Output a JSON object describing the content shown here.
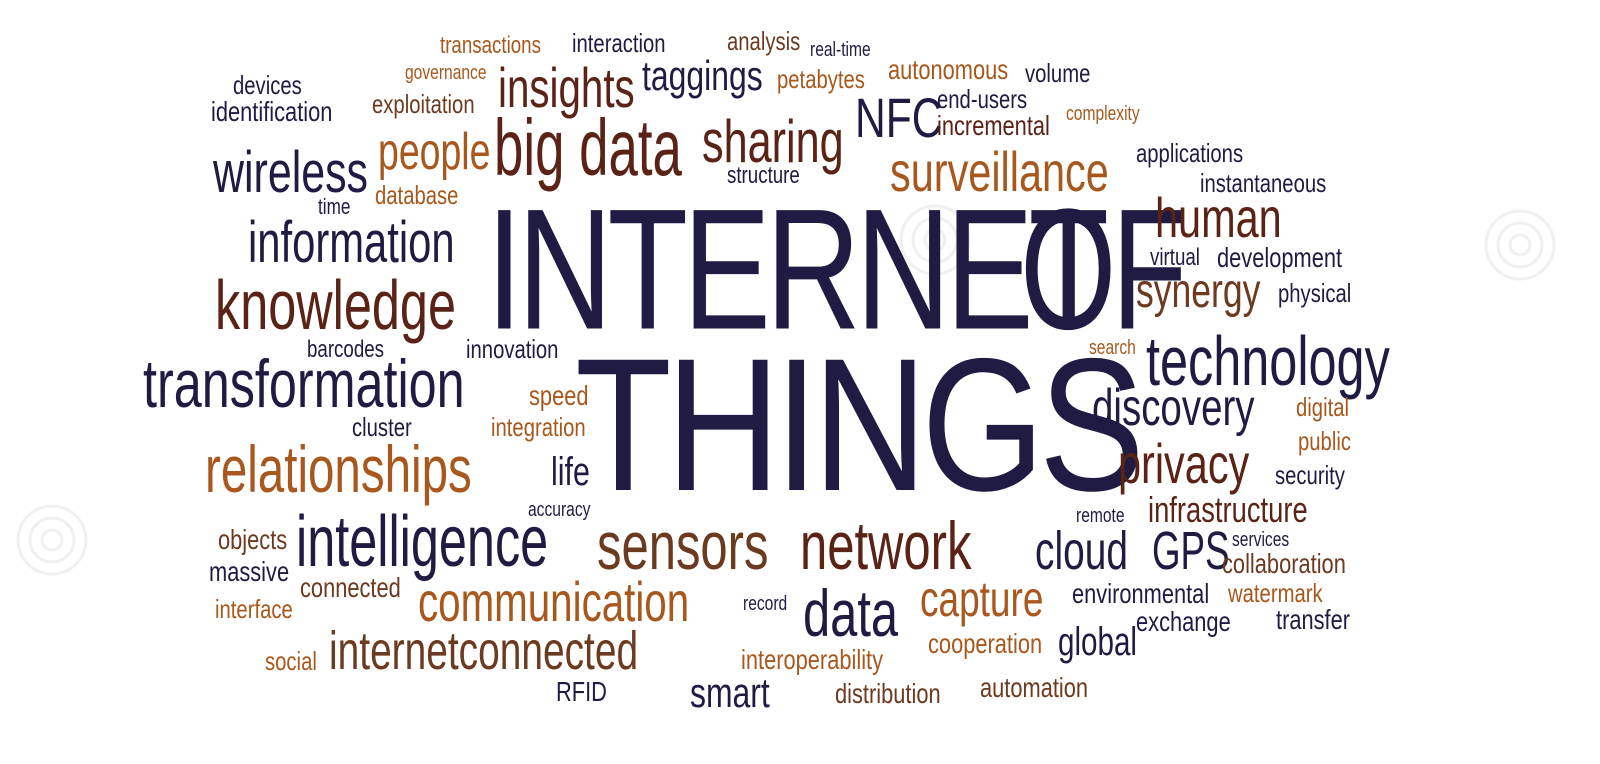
{
  "palette": {
    "navy": "#1f1b42",
    "maroon": "#5a2316",
    "brown": "#6b3a1f",
    "orange": "#a8581c",
    "dark": "#2b1a2e"
  },
  "words": {
    "internet": "INTERNET",
    "of": "OF",
    "things": "THINGS",
    "transactions": "transactions",
    "interaction": "interaction",
    "analysis": "analysis",
    "real_time": "real-time",
    "governance": "governance",
    "insights": "insights",
    "taggings": "taggings",
    "petabytes": "petabytes",
    "autonomous": "autonomous",
    "volume": "volume",
    "devices": "devices",
    "identification": "identification",
    "exploitation": "exploitation",
    "nfc": "NFC",
    "end_users": "end-users",
    "incremental": "incremental",
    "complexity": "complexity",
    "people": "people",
    "big_data": "big data",
    "sharing": "sharing",
    "applications": "applications",
    "wireless": "wireless",
    "surveillance": "surveillance",
    "structure": "structure",
    "instantaneous": "instantaneous",
    "database": "database",
    "time": "time",
    "human": "human",
    "information": "information",
    "virtual": "virtual",
    "development": "development",
    "knowledge": "knowledge",
    "synergy": "synergy",
    "physical": "physical",
    "barcodes": "barcodes",
    "innovation": "innovation",
    "search": "search",
    "technology": "technology",
    "transformation": "transformation",
    "speed": "speed",
    "discovery": "discovery",
    "digital": "digital",
    "cluster": "cluster",
    "integration": "integration",
    "public": "public",
    "relationships": "relationships",
    "life": "life",
    "privacy": "privacy",
    "security": "security",
    "accuracy": "accuracy",
    "infrastructure": "infrastructure",
    "remote": "remote",
    "objects": "objects",
    "intelligence": "intelligence",
    "sensors": "sensors",
    "network": "network",
    "cloud": "cloud",
    "gps": "GPS",
    "services": "services",
    "massive": "massive",
    "collaboration": "collaboration",
    "connected": "connected",
    "interface": "interface",
    "communication": "communication",
    "record": "record",
    "data": "data",
    "capture": "capture",
    "environmental": "environmental",
    "watermark": "watermark",
    "exchange": "exchange",
    "transfer": "transfer",
    "social": "social",
    "internetconnected": "internetconnected",
    "cooperation": "cooperation",
    "global": "global",
    "interoperability": "interoperability",
    "rfid": "RFID",
    "smart": "smart",
    "distribution": "distribution",
    "automation": "automation"
  }
}
